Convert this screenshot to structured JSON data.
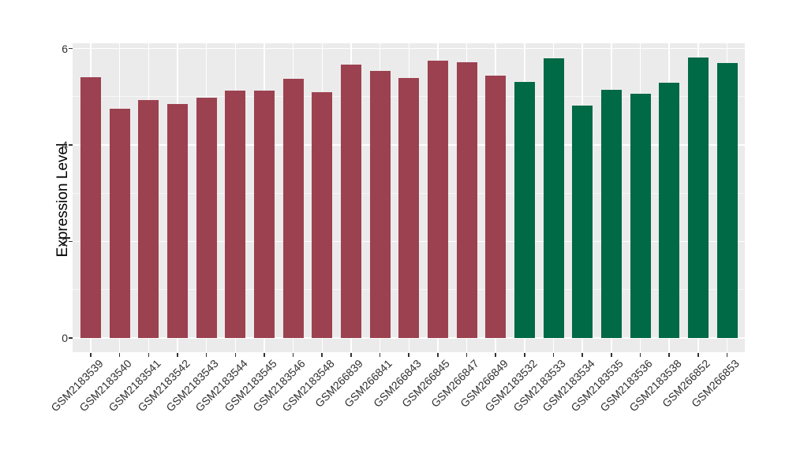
{
  "chart_data": {
    "type": "bar",
    "title": "",
    "xlabel": "",
    "ylabel": "Expression Level",
    "ylim": [
      -0.29,
      6.11
    ],
    "yticks": [
      0,
      2,
      4,
      6
    ],
    "y_minor_ticks": [
      1,
      3,
      5
    ],
    "grid": "on",
    "legend_position": "none",
    "panel_background": "#EBEBEB",
    "gridline_color": "#FFFFFF",
    "tick_color": "#333333",
    "series": [
      {
        "name": "maroon-group",
        "color": "#9C4150",
        "categories": [
          "GSM2183539",
          "GSM2183540",
          "GSM2183541",
          "GSM2183542",
          "GSM2183543",
          "GSM2183544",
          "GSM2183545",
          "GSM2183546",
          "GSM2183548",
          "GSM266839",
          "GSM266841",
          "GSM266843",
          "GSM266845",
          "GSM266847",
          "GSM266849"
        ],
        "values": [
          5.4,
          4.75,
          4.93,
          4.85,
          4.98,
          5.12,
          5.12,
          5.37,
          5.09,
          5.67,
          5.54,
          5.38,
          5.75,
          5.71,
          5.43
        ]
      },
      {
        "name": "green-group",
        "color": "#006946",
        "categories": [
          "GSM2183532",
          "GSM2183533",
          "GSM2183534",
          "GSM2183535",
          "GSM2183536",
          "GSM2183538",
          "GSM266852",
          "GSM266853"
        ],
        "values": [
          5.3,
          5.8,
          4.81,
          5.14,
          5.06,
          5.29,
          5.82,
          5.69
        ]
      }
    ]
  }
}
